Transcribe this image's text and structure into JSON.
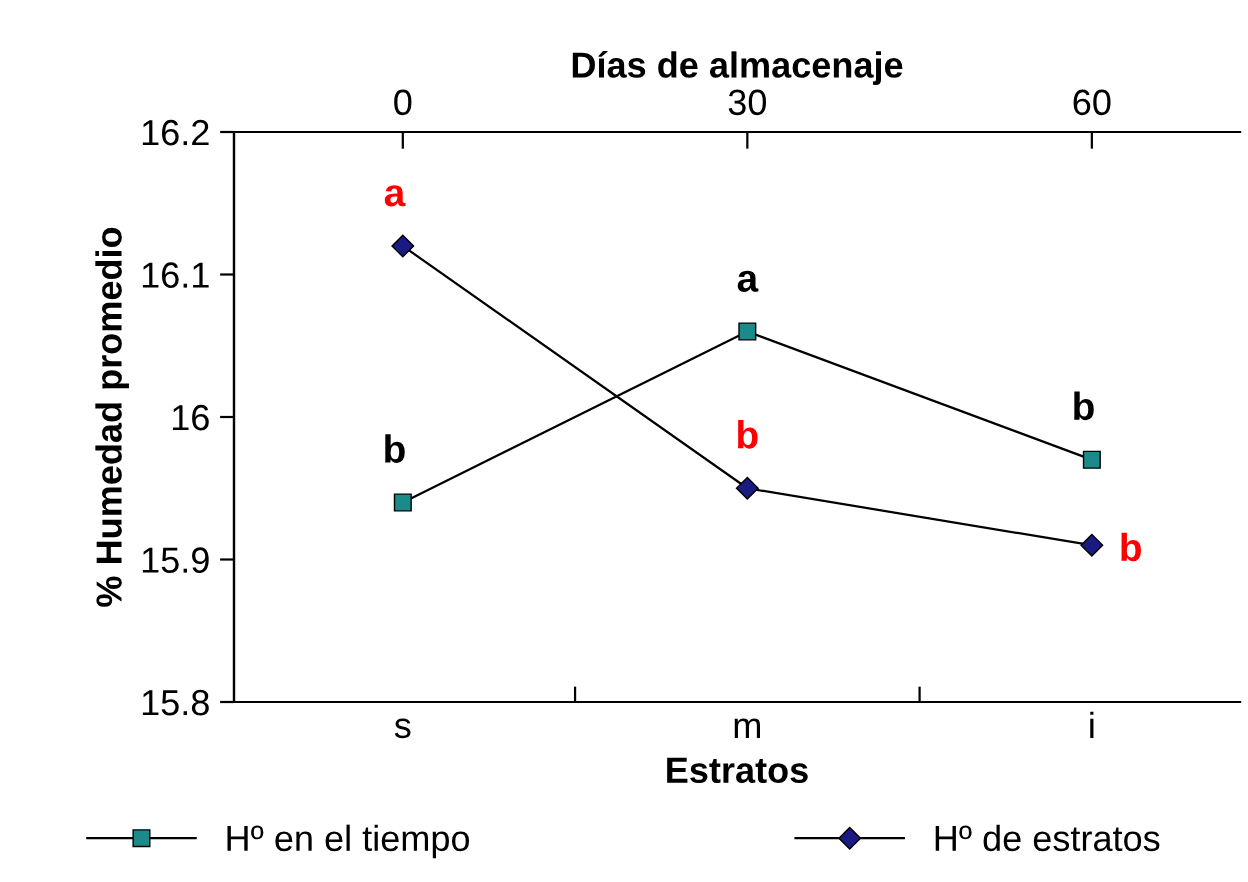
{
  "chart_data": {
    "type": "line",
    "xlabel": "Estratos",
    "ylabel": "% Humedad promedio",
    "x2label": "Días de almacenaje",
    "categories": [
      "s",
      "m",
      "i"
    ],
    "x2lim": [
      -14.7,
      72.9
    ],
    "x2ticks": [
      0,
      30,
      60
    ],
    "ylim": [
      15.8,
      16.2
    ],
    "yticks": [
      15.8,
      15.9,
      {
        "value": 16.0,
        "label": "16"
      },
      16.1,
      16.2
    ],
    "series": [
      {
        "name": "Hº en el tiempo",
        "color": "#1a8a8a",
        "marker": "square",
        "values": [
          15.94,
          16.06,
          15.97
        ]
      },
      {
        "name": "Hº de estratos",
        "color": "#1a1a80",
        "marker": "diamond",
        "values": [
          16.12,
          15.95,
          15.91
        ]
      }
    ],
    "annotations": [
      {
        "text": "a",
        "x": "s",
        "y": 16.12
      },
      {
        "text": "b",
        "x": "s",
        "y": 15.94
      },
      {
        "text": "a",
        "x": "m",
        "y": 16.06
      },
      {
        "text": "b",
        "x": "m",
        "y": 15.95
      },
      {
        "text": "b",
        "x": "i",
        "y": 15.97
      },
      {
        "text": "b",
        "x": "i",
        "y": 15.91
      }
    ],
    "grid": false,
    "legend": "bottom",
    "line_style": "solid"
  }
}
